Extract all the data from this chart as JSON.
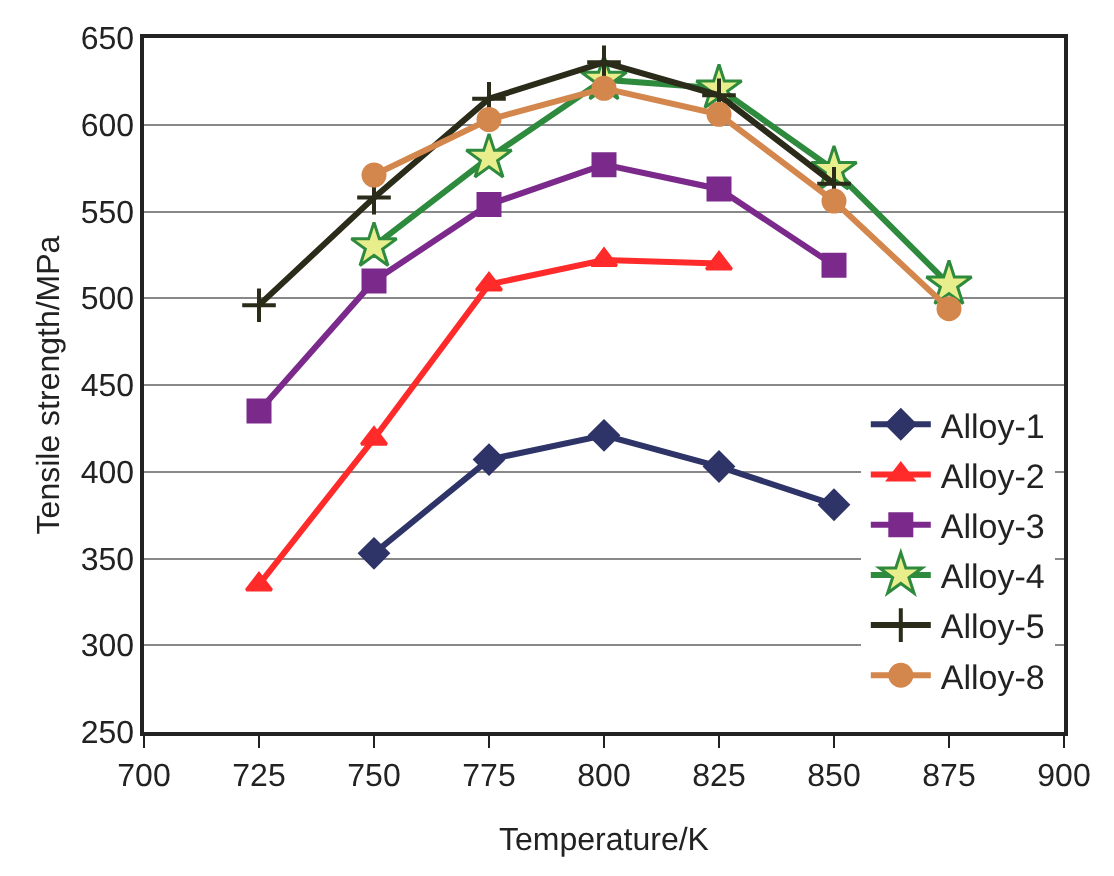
{
  "chart_data": {
    "type": "line",
    "xlabel": "Temperature/K",
    "ylabel": "Tensile strength/MPa",
    "xlim": [
      700,
      900
    ],
    "xticks": [
      700,
      725,
      750,
      775,
      800,
      825,
      850,
      875,
      900
    ],
    "ylim": [
      250,
      650
    ],
    "yticks": [
      250,
      300,
      350,
      400,
      450,
      500,
      550,
      600,
      650
    ],
    "grid": "y",
    "legend": "right",
    "line_style": "solid",
    "series": [
      {
        "name": "Alloy-1",
        "color": "#2e3468",
        "marker": "diamond",
        "x": [
          750,
          775,
          800,
          825,
          850
        ],
        "values": [
          353,
          407,
          421,
          403,
          381
        ]
      },
      {
        "name": "Alloy-2",
        "color": "#ff2a2a",
        "marker": "triangle",
        "x": [
          725,
          750,
          775,
          800,
          825
        ],
        "values": [
          335,
          419,
          508,
          522,
          520
        ]
      },
      {
        "name": "Alloy-3",
        "color": "#7b2a8c",
        "marker": "square",
        "x": [
          725,
          750,
          775,
          800,
          825,
          850
        ],
        "values": [
          435,
          510,
          554,
          577,
          563,
          519
        ]
      },
      {
        "name": "Alloy-4",
        "color": "#2e8b3e",
        "marker": "star",
        "x": [
          750,
          775,
          800,
          825,
          850,
          875
        ],
        "values": [
          530,
          581,
          626,
          621,
          574,
          508
        ]
      },
      {
        "name": "Alloy-5",
        "color": "#2b2b1a",
        "marker": "cross",
        "x": [
          725,
          750,
          775,
          800,
          825,
          850
        ],
        "values": [
          496,
          558,
          615,
          636,
          617,
          566
        ]
      },
      {
        "name": "Alloy-8",
        "color": "#d4874c",
        "marker": "circle",
        "x": [
          750,
          775,
          800,
          825,
          850,
          875
        ],
        "values": [
          571,
          603,
          621,
          606,
          556,
          494
        ]
      }
    ]
  }
}
